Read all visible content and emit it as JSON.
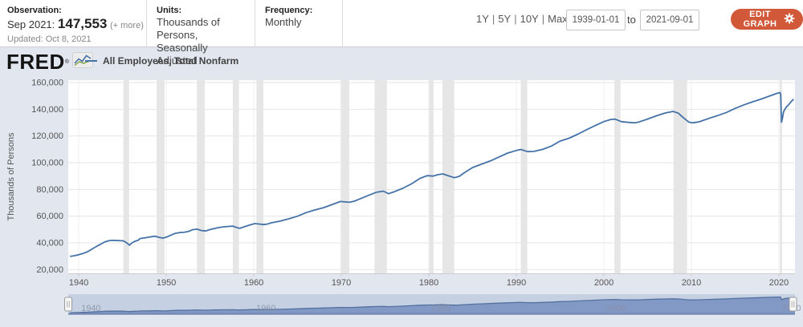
{
  "header": {
    "observation_label": "Observation:",
    "observation_date": "Sep 2021:",
    "observation_value": "147,553",
    "observation_more": "(+ more)",
    "updated": "Updated: Oct 8, 2021",
    "units_label": "Units:",
    "units_line1": "Thousands of Persons,",
    "units_line2": "Seasonally Adjusted",
    "frequency_label": "Frequency:",
    "frequency_value": "Monthly",
    "range_links": [
      "1Y",
      "5Y",
      "10Y",
      "Max"
    ],
    "range_separator": "|",
    "date_start": "1939-01-01",
    "date_to_label": "to",
    "date_end": "2021-09-01",
    "edit_button_label": "EDIT GRAPH",
    "edit_button_color": "#d2583a"
  },
  "brand": {
    "logo_text": "FRED",
    "registered_mark": "®",
    "legend_dash": "",
    "legend_label": "All Employees, Total Nonfarm"
  },
  "chart_data": {
    "type": "line",
    "title": "All Employees, Total Nonfarm",
    "ylabel": "Thousands of Persons",
    "xlabel": "",
    "grid": true,
    "legend_position": "top-left",
    "xlim": [
      1938.8,
      2021.83
    ],
    "ylim": [
      17240,
      161800
    ],
    "xticks": [
      [
        1940,
        "1940"
      ],
      [
        1950,
        "1950"
      ],
      [
        1960,
        "1960"
      ],
      [
        1970,
        "1970"
      ],
      [
        1980,
        "1980"
      ],
      [
        1990,
        "1990"
      ],
      [
        2000,
        "2000"
      ],
      [
        2010,
        "2010"
      ],
      [
        2020,
        "2020"
      ]
    ],
    "yticks": [
      [
        20000,
        "20,000"
      ],
      [
        40000,
        "40,000"
      ],
      [
        60000,
        "60,000"
      ],
      [
        80000,
        "80,000"
      ],
      [
        100000,
        "100,000"
      ],
      [
        120000,
        "120,000"
      ],
      [
        140000,
        "140,000"
      ],
      [
        160000,
        "160,000"
      ]
    ],
    "slider_labels": [
      [
        1940,
        "1940"
      ],
      [
        1960,
        "1960"
      ],
      [
        1980,
        "1980"
      ],
      [
        2000,
        "2000"
      ],
      [
        2020,
        "2020"
      ]
    ],
    "recessions": [
      [
        1945.1,
        1945.75
      ],
      [
        1948.9,
        1949.8
      ],
      [
        1953.5,
        1954.4
      ],
      [
        1957.6,
        1958.3
      ],
      [
        1960.3,
        1961.1
      ],
      [
        1969.9,
        1970.9
      ],
      [
        1973.8,
        1975.2
      ],
      [
        1980.0,
        1980.55
      ],
      [
        1981.55,
        1982.9
      ],
      [
        1990.5,
        1991.25
      ],
      [
        2001.2,
        2001.9
      ],
      [
        2007.95,
        2009.5
      ],
      [
        2020.1,
        2020.35
      ]
    ],
    "colors": {
      "line": "#4572a7",
      "plot_bg": "#ffffff",
      "panel_bg": "#e1e6ef",
      "recession_band": "#e6e6e6",
      "h_grid": "#e6e6e6",
      "v_grid": "#efefef",
      "axis": "#cccccc",
      "tick_label": "#555555",
      "slider_track": "#c6d0e3",
      "slider_fill": "#8399c5",
      "slider_edge": "#53719f",
      "slider_bottom": "#7288b4",
      "slider_label": "#858fa5"
    },
    "series": [
      {
        "name": "All Employees, Total Nonfarm",
        "color": "#4572a7",
        "points": [
          [
            1939,
            29900
          ],
          [
            1939.5,
            30400
          ],
          [
            1940,
            31200
          ],
          [
            1940.5,
            32100
          ],
          [
            1941,
            33400
          ],
          [
            1941.5,
            35300
          ],
          [
            1942,
            37300
          ],
          [
            1942.5,
            39000
          ],
          [
            1943,
            40800
          ],
          [
            1943.5,
            41800
          ],
          [
            1944,
            41900
          ],
          [
            1944.5,
            41700
          ],
          [
            1945,
            41600
          ],
          [
            1945.2,
            41200
          ],
          [
            1945.5,
            40000
          ],
          [
            1945.8,
            38300
          ],
          [
            1946,
            39700
          ],
          [
            1946.4,
            41200
          ],
          [
            1946.8,
            42000
          ],
          [
            1947,
            43300
          ],
          [
            1947.5,
            43700
          ],
          [
            1948,
            44300
          ],
          [
            1948.7,
            45000
          ],
          [
            1949,
            44500
          ],
          [
            1949.6,
            43600
          ],
          [
            1950,
            44300
          ],
          [
            1950.5,
            45700
          ],
          [
            1951,
            47100
          ],
          [
            1951.5,
            47700
          ],
          [
            1952,
            47900
          ],
          [
            1952.5,
            48500
          ],
          [
            1953,
            49900
          ],
          [
            1953.5,
            50300
          ],
          [
            1954,
            49300
          ],
          [
            1954.5,
            48900
          ],
          [
            1955,
            50000
          ],
          [
            1955.5,
            50800
          ],
          [
            1956,
            51500
          ],
          [
            1956.5,
            52000
          ],
          [
            1957,
            52300
          ],
          [
            1957.6,
            52600
          ],
          [
            1958,
            51600
          ],
          [
            1958.4,
            50900
          ],
          [
            1959,
            52300
          ],
          [
            1959.5,
            53300
          ],
          [
            1960.1,
            54400
          ],
          [
            1960.5,
            54200
          ],
          [
            1961.1,
            53700
          ],
          [
            1961.5,
            54000
          ],
          [
            1962,
            55000
          ],
          [
            1963,
            56300
          ],
          [
            1964,
            58000
          ],
          [
            1965,
            60000
          ],
          [
            1966,
            62700
          ],
          [
            1967,
            64700
          ],
          [
            1968,
            66400
          ],
          [
            1969,
            68800
          ],
          [
            1969.9,
            71000
          ],
          [
            1970.4,
            70700
          ],
          [
            1970.9,
            70400
          ],
          [
            1971.5,
            71200
          ],
          [
            1972,
            72600
          ],
          [
            1973,
            75300
          ],
          [
            1974,
            77900
          ],
          [
            1974.8,
            78700
          ],
          [
            1975.4,
            76800
          ],
          [
            1976,
            78200
          ],
          [
            1977,
            80800
          ],
          [
            1978,
            84100
          ],
          [
            1979,
            88300
          ],
          [
            1979.8,
            90300
          ],
          [
            1980.5,
            90000
          ],
          [
            1981,
            91000
          ],
          [
            1981.6,
            91600
          ],
          [
            1982,
            90700
          ],
          [
            1982.9,
            88800
          ],
          [
            1983.5,
            89900
          ],
          [
            1984,
            92300
          ],
          [
            1985,
            96400
          ],
          [
            1986,
            98900
          ],
          [
            1987,
            101300
          ],
          [
            1988,
            104300
          ],
          [
            1989,
            107200
          ],
          [
            1990,
            109200
          ],
          [
            1990.5,
            109900
          ],
          [
            1991.3,
            108300
          ],
          [
            1992,
            108500
          ],
          [
            1993,
            110000
          ],
          [
            1994,
            112500
          ],
          [
            1995,
            116200
          ],
          [
            1996,
            118300
          ],
          [
            1997,
            121300
          ],
          [
            1998,
            124700
          ],
          [
            1999,
            127800
          ],
          [
            2000,
            130800
          ],
          [
            2000.8,
            132400
          ],
          [
            2001.3,
            132600
          ],
          [
            2002,
            130700
          ],
          [
            2002.8,
            130200
          ],
          [
            2003.5,
            129900
          ],
          [
            2004,
            130500
          ],
          [
            2005,
            132700
          ],
          [
            2006,
            135100
          ],
          [
            2007,
            137200
          ],
          [
            2007.9,
            138400
          ],
          [
            2008.5,
            137100
          ],
          [
            2009,
            134100
          ],
          [
            2009.7,
            130400
          ],
          [
            2010.1,
            129800
          ],
          [
            2010.8,
            130500
          ],
          [
            2011,
            130900
          ],
          [
            2012,
            133200
          ],
          [
            2013,
            135300
          ],
          [
            2014,
            137600
          ],
          [
            2015,
            140700
          ],
          [
            2016,
            143300
          ],
          [
            2017,
            145600
          ],
          [
            2018,
            147700
          ],
          [
            2019,
            150100
          ],
          [
            2019.9,
            152200
          ],
          [
            2020.12,
            152500
          ],
          [
            2020.2,
            151000
          ],
          [
            2020.29,
            130300
          ],
          [
            2020.4,
            133100
          ],
          [
            2020.5,
            137400
          ],
          [
            2020.62,
            139400
          ],
          [
            2020.75,
            140600
          ],
          [
            2020.9,
            142200
          ],
          [
            2021,
            142700
          ],
          [
            2021.1,
            143400
          ],
          [
            2021.25,
            144600
          ],
          [
            2021.4,
            145900
          ],
          [
            2021.55,
            146600
          ],
          [
            2021.67,
            147553
          ]
        ]
      }
    ]
  }
}
